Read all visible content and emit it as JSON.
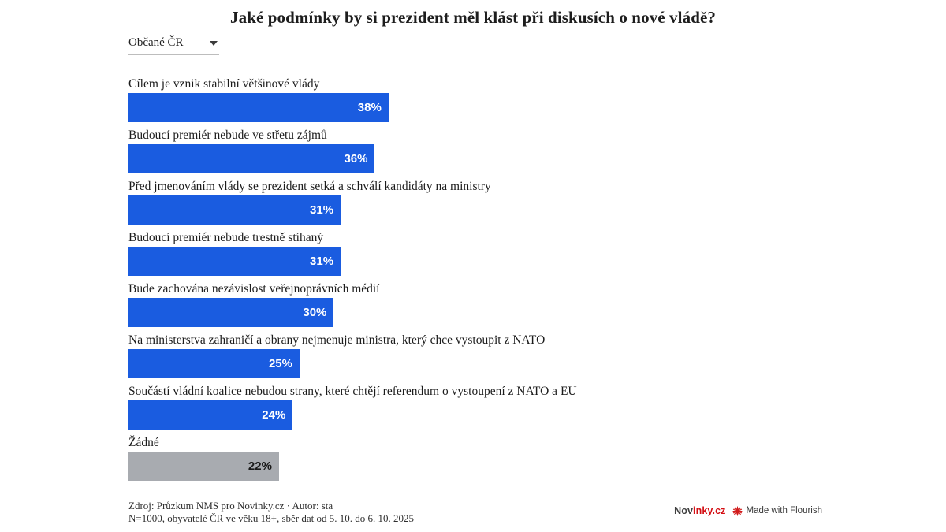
{
  "title": "Jaké podmínky by si prezident měl klást při diskusích o nové vládě?",
  "filter": {
    "selected": "Občané ČR"
  },
  "chart_data": {
    "type": "bar",
    "orientation": "horizontal",
    "unit": "%",
    "title": "Jaké podmínky by si prezident měl klást při diskusích o nové vládě?",
    "xlabel": "",
    "ylabel": "",
    "xlim": [
      0,
      100
    ],
    "grid": false,
    "legend": "none",
    "value_labels": "inside-end",
    "categories": [
      "Cílem je vznik stabilní většinové vlády",
      "Budoucí premiér nebude ve střetu zájmů",
      "Před jmenováním vlády se prezident setká a schválí kandidáty na ministry",
      "Budoucí premiér nebude trestně stíhaný",
      "Bude zachována nezávislost veřejnoprávních médií",
      "Na ministerstva zahraničí a obrany nejmenuje ministra, který chce vystoupit z NATO",
      "Součástí vládní koalice nebudou strany, které chtějí referendum o vystoupení z NATO a EU",
      "Žádné"
    ],
    "values": [
      38,
      36,
      31,
      31,
      30,
      25,
      24,
      22
    ],
    "bar_colors": [
      "#1a5ce0",
      "#1a5ce0",
      "#1a5ce0",
      "#1a5ce0",
      "#1a5ce0",
      "#1a5ce0",
      "#1a5ce0",
      "#a8abb0"
    ],
    "value_label_colors": [
      "#ffffff",
      "#ffffff",
      "#ffffff",
      "#ffffff",
      "#ffffff",
      "#ffffff",
      "#ffffff",
      "#1a1a1a"
    ]
  },
  "colors": {
    "background": "#ffffff",
    "bar_blue": "#1a5ce0",
    "bar_gray": "#a8abb0",
    "novinky_red": "#d40f14",
    "flourish_red": "#d11c1c"
  },
  "footer": {
    "line1": "Zdroj: Průzkum NMS pro Novinky.cz · Autor: sta",
    "line2": "N=1000, obyvatelé ČR ve věku 18+, sběr dat od 5. 10. do 6. 10. 2025"
  },
  "attribution": {
    "novinky_prefix": "Nov",
    "novinky_suffix": "inky.cz",
    "flourish_label": "Made with Flourish"
  }
}
